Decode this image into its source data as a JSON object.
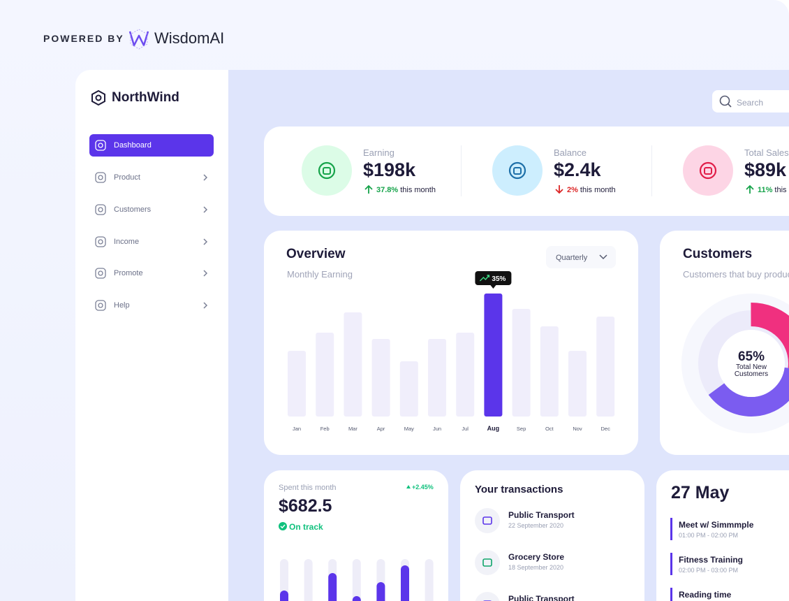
{
  "powered_by": {
    "label": "POWERED BY",
    "brand": "WisdomAI"
  },
  "sidebar": {
    "brand": "NorthWind",
    "menu": [
      {
        "label": "Dashboard",
        "active": true
      },
      {
        "label": "Product",
        "active": false
      },
      {
        "label": "Customers",
        "active": false
      },
      {
        "label": "Income",
        "active": false
      },
      {
        "label": "Promote",
        "active": false
      },
      {
        "label": "Help",
        "active": false
      }
    ]
  },
  "search": {
    "placeholder": "Search"
  },
  "stats": [
    {
      "label": "Earning",
      "value": "$198k",
      "change": "37.8%",
      "direction": "up",
      "note": "this month",
      "bg": "#dcfce7",
      "color": "#16a34a"
    },
    {
      "label": "Balance",
      "value": "$2.4k",
      "change": "2%",
      "direction": "down",
      "note": "this month",
      "bg": "#cdeefe",
      "color": "#1d6fa8"
    },
    {
      "label": "Total Sales",
      "value": "$89k",
      "change": "11%",
      "direction": "up",
      "note": "this month",
      "bg": "#fdd5e5",
      "color": "#e11d48"
    }
  ],
  "overview": {
    "type": "bar",
    "title": "Overview",
    "subtitle": "Monthly Earning",
    "period": "Quarterly",
    "categories": [
      "Jan",
      "Feb",
      "Mar",
      "Apr",
      "May",
      "Jun",
      "Jul",
      "Aug",
      "Sep",
      "Oct",
      "Nov",
      "Dec"
    ],
    "values": [
      94,
      120,
      149,
      111,
      79,
      111,
      120,
      176,
      154,
      129,
      94,
      143
    ],
    "color": "#f0eefb",
    "highlight_color": "#5b35ea",
    "highlight_index": 7,
    "highlight_label": "35%"
  },
  "customers": {
    "type": "donut",
    "title": "Customers",
    "subtitle": "Customers that buy products",
    "center_value": "65%",
    "center_label": "Total New Customers",
    "segments": [
      {
        "value": 27,
        "color": "#f0307f"
      },
      {
        "value": 38,
        "color": "#7b5cf0"
      }
    ],
    "track_color": "#ecebfa"
  },
  "spent": {
    "type": "bar",
    "label": "Spent this month",
    "amount": "$682.5",
    "change": "+2.45%",
    "status": "On track",
    "values": [
      15,
      0,
      40,
      7,
      27,
      51,
      0
    ],
    "color": "#5b35ea",
    "track_color": "#eeedf8"
  },
  "transactions": {
    "title": "Your transactions",
    "items": [
      {
        "name": "Public Transport",
        "date": "22 September 2020"
      },
      {
        "name": "Grocery Store",
        "date": "18 September 2020"
      },
      {
        "name": "Public Transport"
      }
    ]
  },
  "schedule": {
    "date": "27 May",
    "events": [
      {
        "title": "Meet w/ Simmmple",
        "time": "01:00 PM - 02:00 PM"
      },
      {
        "title": "Fitness Training",
        "time": "02:00 PM - 03:00 PM"
      },
      {
        "title": "Reading time"
      }
    ]
  }
}
